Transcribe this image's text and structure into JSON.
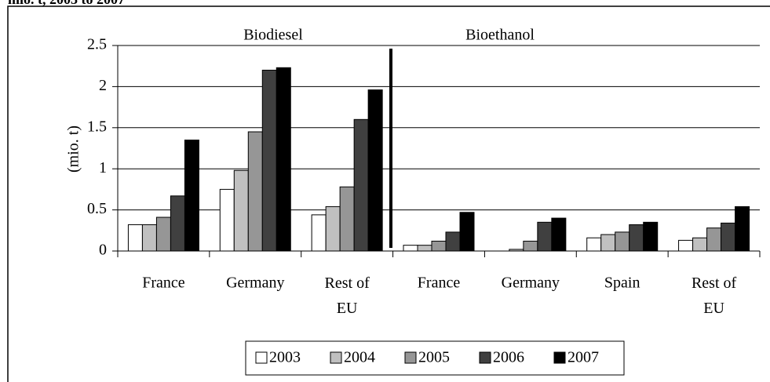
{
  "chart_data": {
    "type": "bar",
    "title": "mio. t, 2003 to 2007",
    "y_label": "(mio. t)",
    "annotations": [
      "Biodiesel",
      "Bioethanol"
    ],
    "categories": [
      "France",
      "Germany",
      "Rest of EU",
      "France",
      "Germany",
      "Spain",
      "Rest of EU"
    ],
    "series": [
      {
        "name": "2003",
        "color": "#ffffff",
        "values": [
          0.32,
          0.75,
          0.44,
          0.07,
          0,
          0.16,
          0.13
        ]
      },
      {
        "name": "2004",
        "color": "#c0c0c0",
        "values": [
          0.32,
          0.98,
          0.54,
          0.07,
          0.02,
          0.2,
          0.16
        ]
      },
      {
        "name": "2005",
        "color": "#969696",
        "values": [
          0.41,
          1.45,
          0.78,
          0.12,
          0.12,
          0.23,
          0.28
        ]
      },
      {
        "name": "2006",
        "color": "#404040",
        "values": [
          0.67,
          2.2,
          1.6,
          0.23,
          0.35,
          0.32,
          0.34
        ]
      },
      {
        "name": "2007",
        "color": "#000000",
        "values": [
          1.35,
          2.23,
          1.96,
          0.47,
          0.4,
          0.35,
          0.54
        ]
      }
    ],
    "ylim": [
      0,
      2.5
    ],
    "yticks": [
      0,
      0.5,
      1,
      1.5,
      2,
      2.5
    ],
    "grid": true,
    "legend": "bottom"
  }
}
